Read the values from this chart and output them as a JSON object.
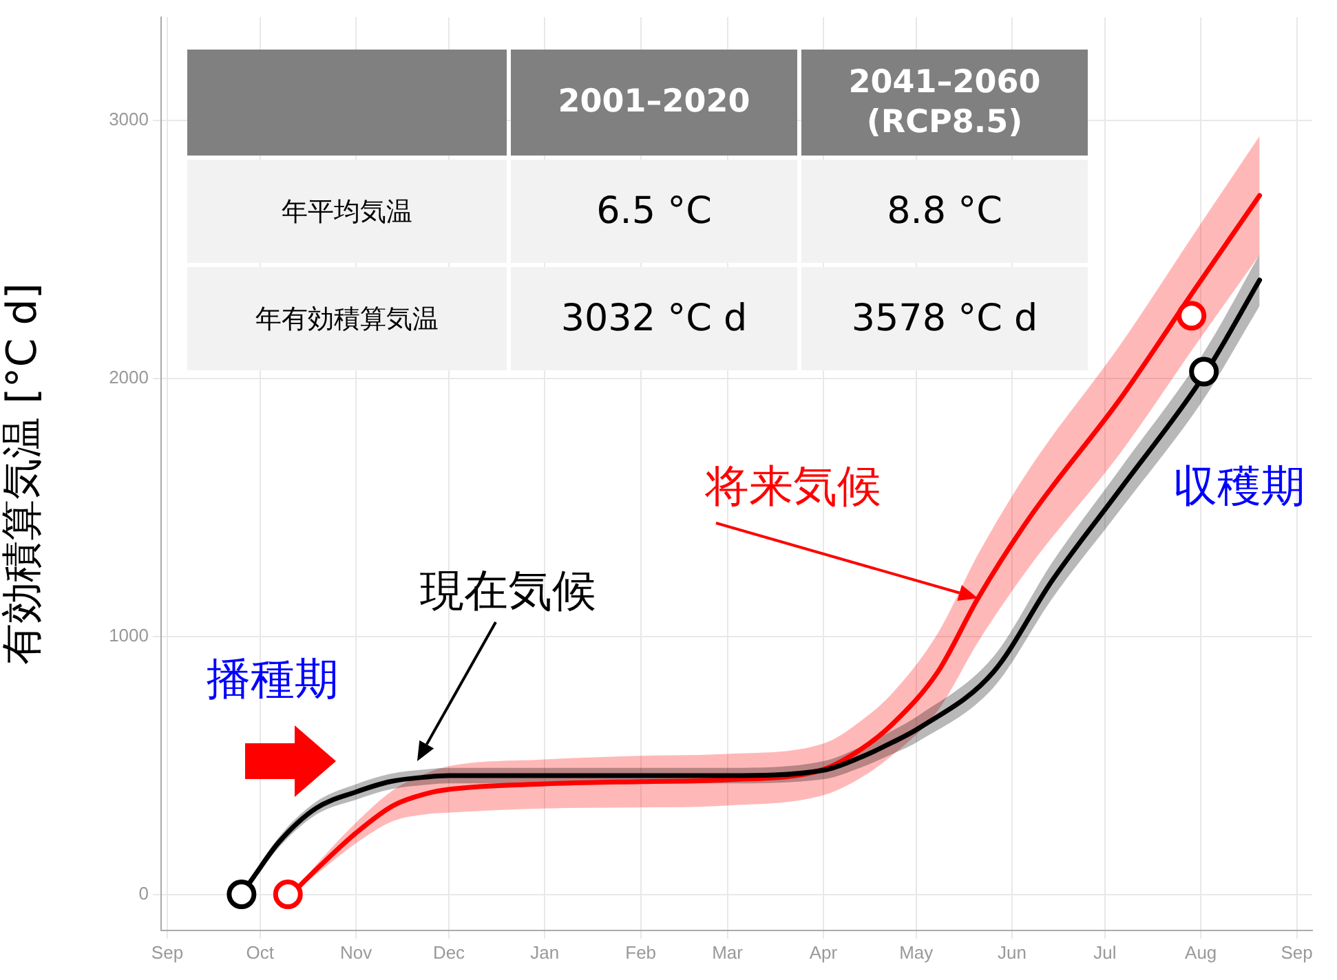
{
  "chart_data": {
    "type": "line",
    "ylabel": "有効積算気温 [°C d]",
    "xlim": [
      "2020-08-30",
      "2021-09-06"
    ],
    "xticks": [
      {
        "value": "2020-09-01",
        "label": "Sep"
      },
      {
        "value": "2020-10-01",
        "label": "Oct"
      },
      {
        "value": "2020-11-01",
        "label": "Nov"
      },
      {
        "value": "2020-12-01",
        "label": "Dec"
      },
      {
        "value": "2021-01-01",
        "label": "Jan"
      },
      {
        "value": "2021-02-01",
        "label": "Feb"
      },
      {
        "value": "2021-03-01",
        "label": "Mar"
      },
      {
        "value": "2021-04-01",
        "label": "Apr"
      },
      {
        "value": "2021-05-01",
        "label": "May"
      },
      {
        "value": "2021-06-01",
        "label": "Jun"
      },
      {
        "value": "2021-07-01",
        "label": "Jul"
      },
      {
        "value": "2021-08-01",
        "label": "Aug"
      },
      {
        "value": "2021-09-01",
        "label": "Sep"
      }
    ],
    "ylim": [
      -140,
      3400
    ],
    "yticks": [
      0,
      1000,
      2000,
      3000
    ],
    "grid": true,
    "marker": "none",
    "line_style": "solid",
    "series": [
      {
        "color": "#000000",
        "x": [
          "2020-09-25",
          "2020-09-29",
          "2020-10-07",
          "2020-10-19",
          "2020-11-01",
          "2020-11-12",
          "2020-11-24",
          "2020-12-01",
          "2021-01-01",
          "2021-02-01",
          "2021-03-01",
          "2021-04-01",
          "2021-04-13",
          "2021-04-23",
          "2021-05-02",
          "2021-05-26",
          "2021-06-14",
          "2021-07-06",
          "2021-08-02",
          "2021-08-20"
        ],
        "values": [
          0,
          69,
          201,
          333,
          397,
          437,
          455,
          460,
          460,
          460,
          460,
          481,
          531,
          587,
          645,
          862,
          1217,
          1571,
          2011,
          2381
        ],
        "lower": [
          0,
          59,
          181,
          308,
          367,
          407,
          425,
          430,
          430,
          430,
          430,
          446,
          491,
          542,
          595,
          802,
          1147,
          1491,
          1921,
          2281
        ],
        "upper": [
          0,
          79,
          221,
          358,
          427,
          467,
          485,
          490,
          490,
          490,
          490,
          516,
          571,
          632,
          695,
          922,
          1287,
          1651,
          2101,
          2481
        ]
      },
      {
        "color": "#ff0000",
        "x": [
          "2020-10-11",
          "2020-10-20",
          "2020-11-01",
          "2020-11-13",
          "2020-11-24",
          "2020-12-01",
          "2021-01-01",
          "2021-02-01",
          "2021-03-01",
          "2021-04-01",
          "2021-04-13",
          "2021-04-23",
          "2021-05-08",
          "2021-05-21",
          "2021-06-07",
          "2021-07-06",
          "2021-07-30",
          "2021-08-20"
        ],
        "values": [
          0,
          106,
          238,
          344,
          391,
          407,
          428,
          437,
          444,
          484,
          561,
          656,
          862,
          1148,
          1466,
          1921,
          2344,
          2709
        ],
        "lower": [
          0,
          86,
          198,
          284,
          311,
          317,
          333,
          337,
          344,
          384,
          451,
          536,
          712,
          978,
          1276,
          1711,
          2124,
          2479
        ],
        "upper": [
          0,
          126,
          278,
          404,
          471,
          497,
          523,
          537,
          544,
          584,
          671,
          776,
          1012,
          1318,
          1656,
          2131,
          2564,
          2939
        ]
      },
      {
        "type": "scatter",
        "marker": "circle",
        "color": "#000000",
        "x": [
          "2020-09-25",
          "2021-08-02"
        ],
        "values": [
          0,
          2026
        ]
      },
      {
        "type": "scatter",
        "marker": "circle",
        "color": "#ff0000",
        "x": [
          "2020-10-10",
          "2021-07-29"
        ],
        "values": [
          0,
          2243
        ]
      }
    ],
    "annotations": [
      "2001–2020",
      "2041–2060 (RCP8.5)",
      "年平均気温",
      "6.5 °C",
      "8.8 °C",
      "年有効積算気温",
      "3032 °C d",
      "3578 °C d",
      "播種期",
      "収穫期",
      "現在気候",
      {
        "text": "将来気候",
        "x": "2021-05-21",
        "y": 1148
      }
    ]
  }
}
